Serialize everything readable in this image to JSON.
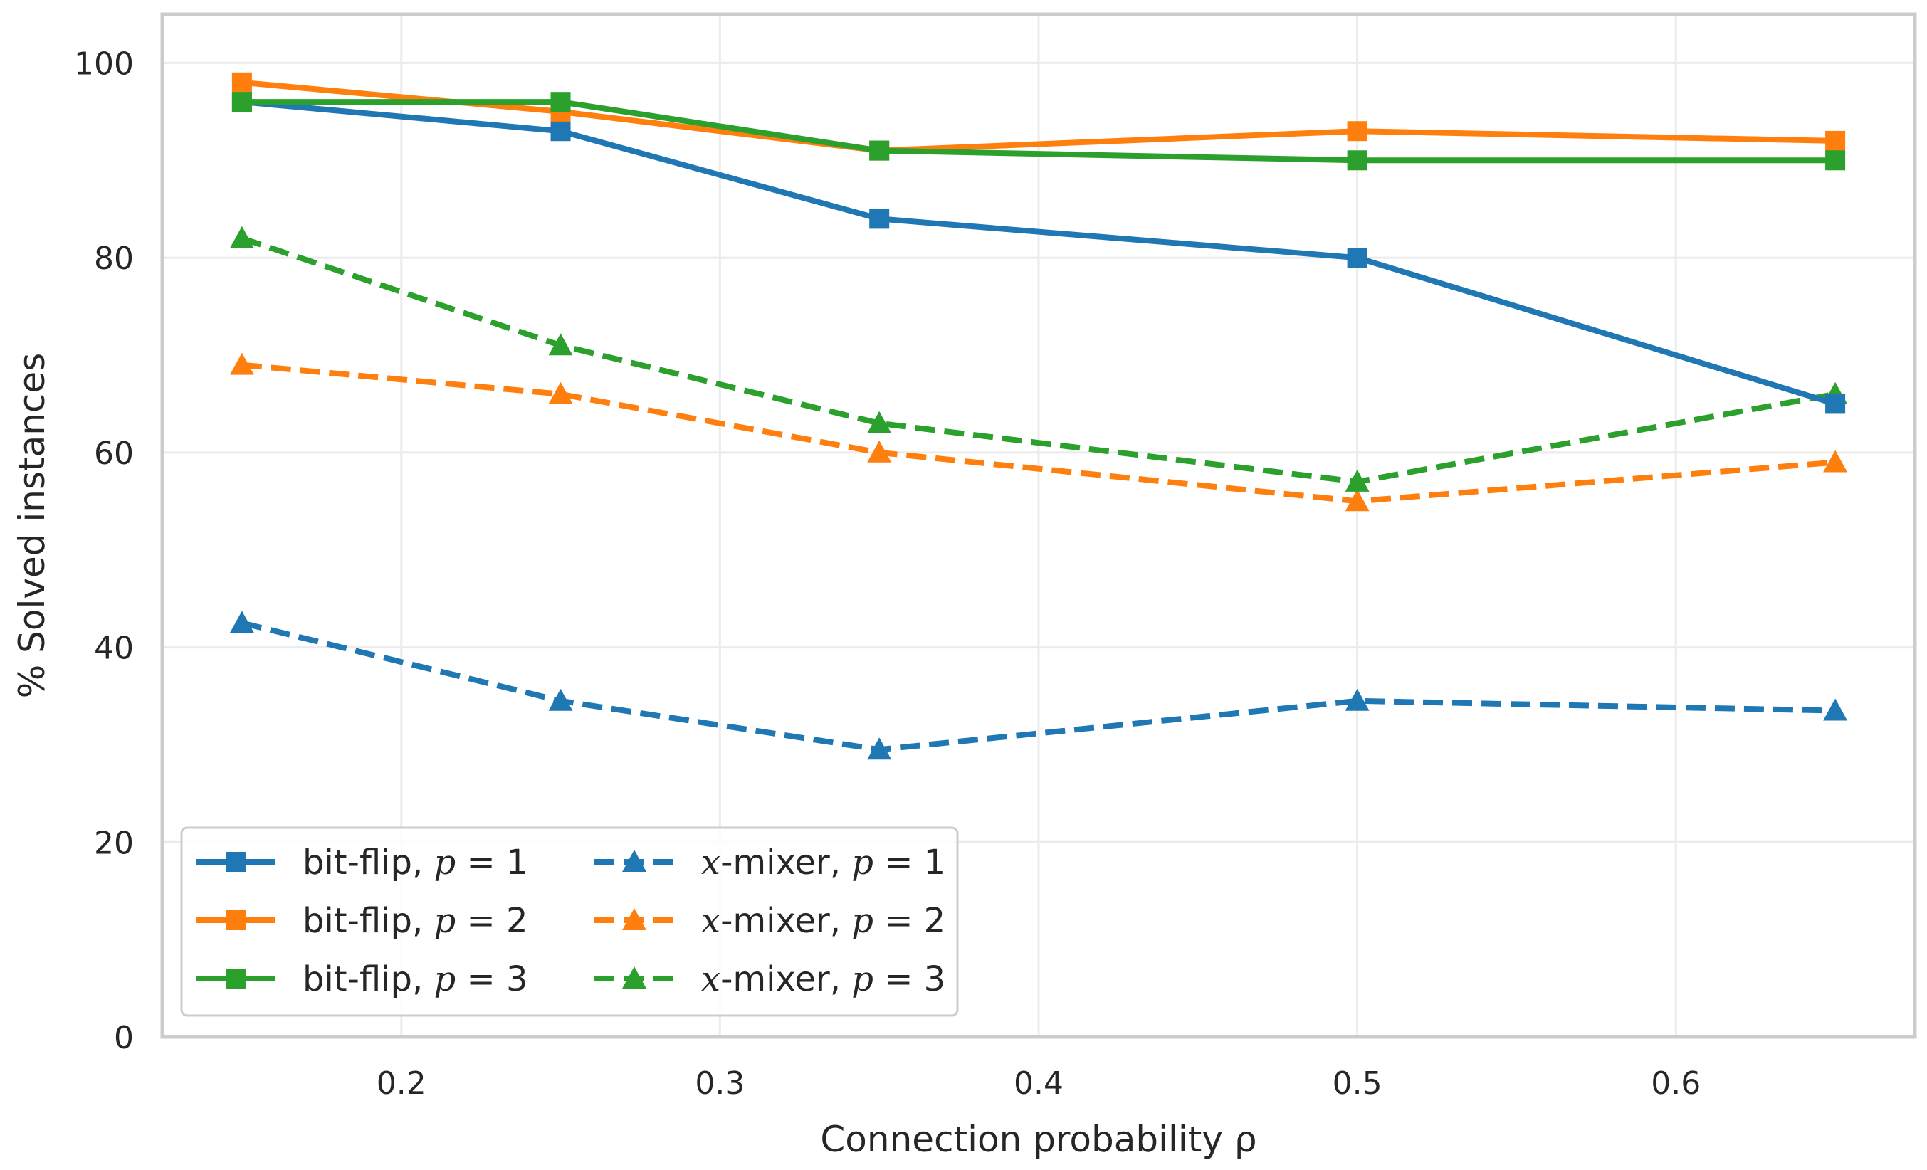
{
  "chart_data": {
    "type": "line",
    "title": "",
    "xlabel": "Connection probability ρ",
    "ylabel": "% Solved instances",
    "x": [
      0.15,
      0.25,
      0.35,
      0.5,
      0.65
    ],
    "xlim": [
      0.125,
      0.675
    ],
    "ylim": [
      0,
      105
    ],
    "xticks": [
      0.2,
      0.3,
      0.4,
      0.5,
      0.6
    ],
    "yticks": [
      0,
      20,
      40,
      60,
      80,
      100
    ],
    "xtick_labels": [
      "0.2",
      "0.3",
      "0.4",
      "0.5",
      "0.6"
    ],
    "ytick_labels": [
      "0",
      "20",
      "40",
      "60",
      "80",
      "100"
    ],
    "grid": true,
    "legend_position": "lower-left",
    "series": [
      {
        "name": "bit-flip, p = 1",
        "prefix": "bit-flip, ",
        "p_value": "1",
        "color": "#1f77b4",
        "linestyle": "solid",
        "marker": "square",
        "values": [
          96,
          93,
          84,
          80,
          65
        ]
      },
      {
        "name": "bit-flip, p = 2",
        "prefix": "bit-flip, ",
        "p_value": "2",
        "color": "#ff7f0e",
        "linestyle": "solid",
        "marker": "square",
        "values": [
          98,
          95,
          91,
          93,
          92
        ]
      },
      {
        "name": "bit-flip, p = 3",
        "prefix": "bit-flip, ",
        "p_value": "3",
        "color": "#2ca02c",
        "linestyle": "solid",
        "marker": "square",
        "values": [
          96,
          96,
          91,
          90,
          90
        ]
      },
      {
        "name": "x-mixer, p = 1",
        "prefix": "-mixer, ",
        "p_value": "1",
        "color": "#1f77b4",
        "linestyle": "dashed",
        "marker": "triangle",
        "values": [
          42.5,
          34.5,
          29.5,
          34.5,
          33.5
        ]
      },
      {
        "name": "x-mixer, p = 2",
        "prefix": "-mixer, ",
        "p_value": "2",
        "color": "#ff7f0e",
        "linestyle": "dashed",
        "marker": "triangle",
        "values": [
          69,
          66,
          60,
          55,
          59
        ]
      },
      {
        "name": "x-mixer, p = 3",
        "prefix": "-mixer, ",
        "p_value": "3",
        "color": "#2ca02c",
        "linestyle": "dashed",
        "marker": "triangle",
        "values": [
          82,
          71,
          63,
          57,
          66
        ]
      }
    ]
  }
}
